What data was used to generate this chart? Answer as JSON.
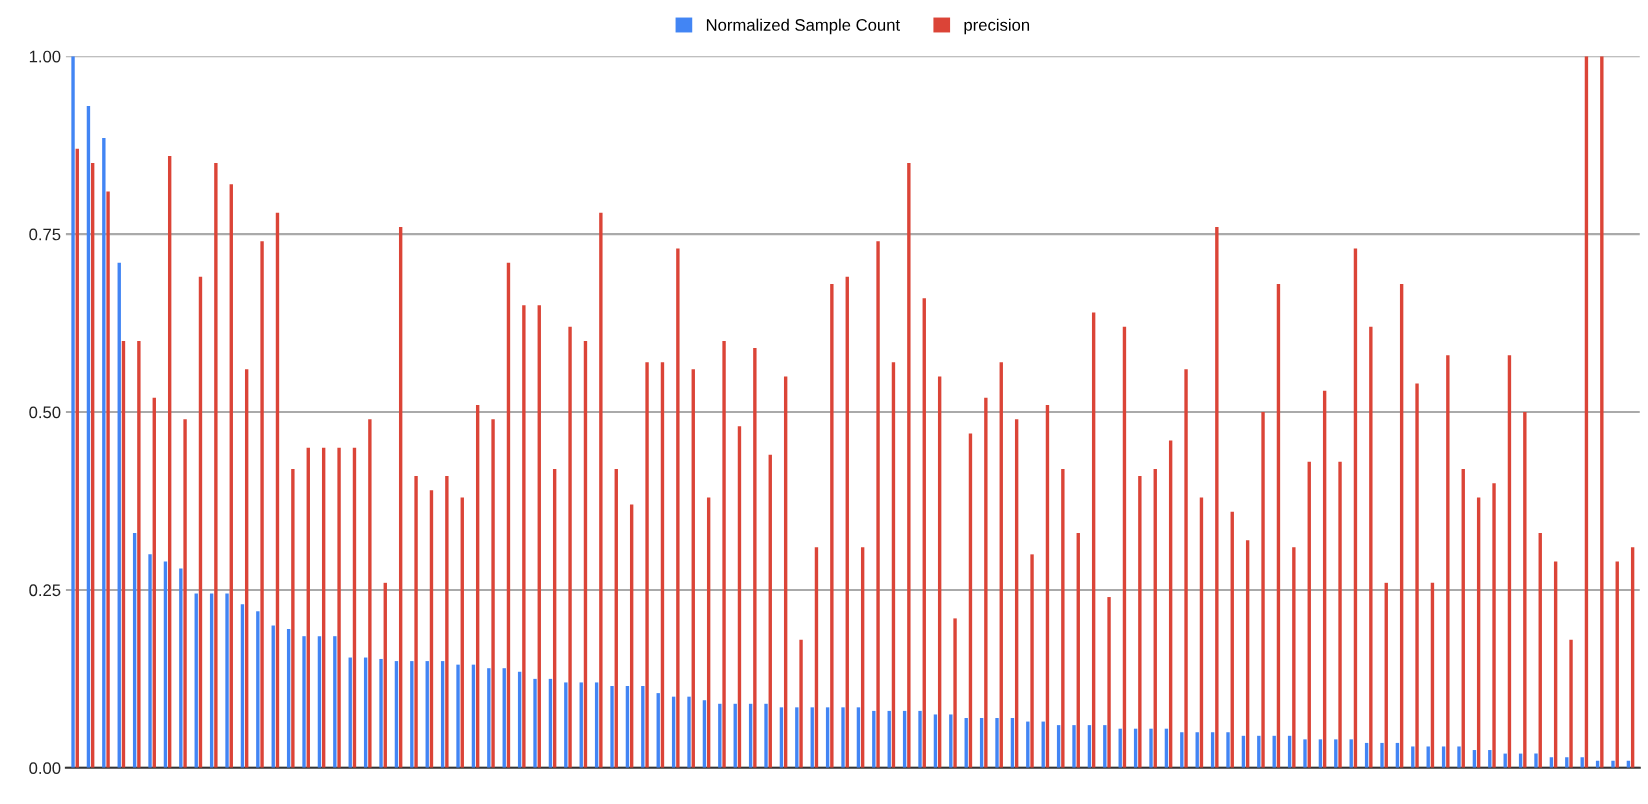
{
  "chart_data": {
    "type": "bar",
    "categories": [
      null,
      null,
      null,
      null,
      null,
      null,
      null,
      null,
      null,
      null,
      null,
      null,
      null,
      null,
      null,
      null,
      null,
      null,
      null,
      null,
      null,
      null,
      null,
      null,
      null,
      null,
      null,
      null,
      null,
      null,
      null,
      null,
      null,
      null,
      null,
      null,
      null,
      null,
      null,
      null,
      null,
      null,
      null,
      null,
      null,
      null,
      null,
      null,
      null,
      null,
      null,
      null,
      null,
      null,
      null,
      null,
      null,
      null,
      null,
      null,
      null,
      null,
      null,
      null,
      null,
      null,
      null,
      null,
      null,
      null,
      null,
      null,
      null,
      null,
      null,
      null,
      null,
      null,
      null,
      null,
      null,
      null,
      null,
      null,
      null,
      null,
      null,
      null,
      null,
      null,
      null,
      null,
      null,
      null,
      null,
      null,
      null,
      null,
      null,
      null,
      null,
      null
    ],
    "series": [
      {
        "name": "Normalized Sample Count",
        "color": "#4285f4",
        "values": [
          1.0,
          0.93,
          0.885,
          0.71,
          0.33,
          0.3,
          0.29,
          0.28,
          0.245,
          0.245,
          0.245,
          0.23,
          0.22,
          0.2,
          0.195,
          0.185,
          0.185,
          0.185,
          0.155,
          0.155,
          0.153,
          0.15,
          0.15,
          0.15,
          0.15,
          0.145,
          0.145,
          0.14,
          0.14,
          0.135,
          0.125,
          0.125,
          0.12,
          0.12,
          0.12,
          0.115,
          0.115,
          0.115,
          0.105,
          0.1,
          0.1,
          0.095,
          0.09,
          0.09,
          0.09,
          0.09,
          0.085,
          0.085,
          0.085,
          0.085,
          0.085,
          0.085,
          0.08,
          0.08,
          0.08,
          0.08,
          0.075,
          0.075,
          0.07,
          0.07,
          0.07,
          0.07,
          0.065,
          0.065,
          0.06,
          0.06,
          0.06,
          0.06,
          0.055,
          0.055,
          0.055,
          0.055,
          0.05,
          0.05,
          0.05,
          0.05,
          0.045,
          0.045,
          0.045,
          0.045,
          0.04,
          0.04,
          0.04,
          0.04,
          0.035,
          0.035,
          0.035,
          0.03,
          0.03,
          0.03,
          0.03,
          0.025,
          0.025,
          0.02,
          0.02,
          0.02,
          0.015,
          0.015,
          0.015,
          0.01,
          0.01,
          0.01
        ]
      },
      {
        "name": "precision",
        "color": "#db4437",
        "values": [
          0.87,
          0.85,
          0.81,
          0.6,
          0.6,
          0.52,
          0.86,
          0.49,
          0.69,
          0.85,
          0.82,
          0.56,
          0.74,
          0.78,
          0.42,
          0.45,
          0.45,
          0.45,
          0.45,
          0.49,
          0.26,
          0.76,
          0.41,
          0.39,
          0.41,
          0.38,
          0.51,
          0.49,
          0.71,
          0.65,
          0.65,
          0.42,
          0.62,
          0.6,
          0.78,
          0.42,
          0.37,
          0.57,
          0.57,
          0.73,
          0.56,
          0.38,
          0.6,
          0.48,
          0.59,
          0.44,
          0.55,
          0.18,
          0.31,
          0.68,
          0.69,
          0.31,
          0.74,
          0.57,
          0.85,
          0.66,
          0.55,
          0.21,
          0.47,
          0.52,
          0.57,
          0.49,
          0.3,
          0.51,
          0.42,
          0.33,
          0.64,
          0.24,
          0.62,
          0.41,
          0.42,
          0.46,
          0.56,
          0.38,
          0.76,
          0.36,
          0.32,
          0.5,
          0.68,
          0.31,
          0.43,
          0.53,
          0.43,
          0.73,
          0.62,
          0.26,
          0.68,
          0.54,
          0.26,
          0.58,
          0.42,
          0.38,
          0.4,
          0.58,
          0.5,
          0.33,
          0.29,
          0.18,
          1.0,
          1.0,
          0.29,
          0.31
        ]
      }
    ],
    "ylim": [
      0,
      1.0
    ],
    "yticks": [
      {
        "value": 0,
        "label": "0.00"
      },
      {
        "value": 0.25,
        "label": "0.25"
      },
      {
        "value": 0.5,
        "label": "0.50"
      },
      {
        "value": 0.75,
        "label": "0.75"
      },
      {
        "value": 1.0,
        "label": "1.00"
      }
    ],
    "grid": "y",
    "legend": "top"
  }
}
